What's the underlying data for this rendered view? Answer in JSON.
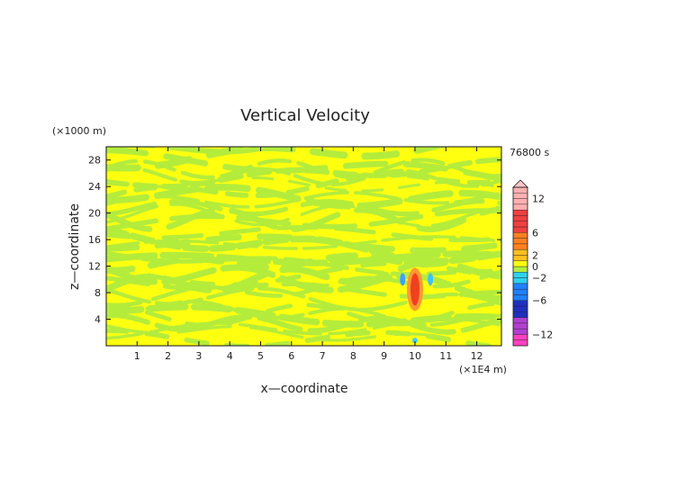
{
  "chart_data": {
    "type": "heatmap",
    "title": "Vertical Velocity",
    "time_label": "76800 s",
    "xlabel": "x—coordinate",
    "ylabel": "z—coordinate",
    "x_unit": "(×1E4 m)",
    "y_unit": "(×1000 m)",
    "xlim": [
      0,
      12.8
    ],
    "ylim": [
      0,
      30
    ],
    "x_ticks": [
      "1",
      "2",
      "3",
      "4",
      "5",
      "6",
      "7",
      "8",
      "9",
      "10",
      "11",
      "12"
    ],
    "y_ticks": [
      "4",
      "8",
      "12",
      "16",
      "20",
      "24",
      "28"
    ],
    "colorbar_labels": [
      "12",
      "6",
      "2",
      "0",
      "−2",
      "−6",
      "−12"
    ],
    "colorbar_levels": [
      -14,
      -13,
      -12,
      -11,
      -10,
      -9,
      -8,
      -7,
      -6,
      -5,
      -4,
      -3,
      -2,
      -1,
      0,
      1,
      2,
      3,
      4,
      5,
      6,
      7,
      8,
      9,
      10,
      11,
      12,
      13,
      14
    ],
    "background_band": "0 to 1 (yellow) alternating with -1 to 0 (light green) in wavy bands across the domain",
    "features": [
      {
        "name": "updraft core",
        "x_center": 10.0,
        "z_center": 8.5,
        "max_value": 8
      },
      {
        "name": "downdraft left flank",
        "x_center": 9.6,
        "z_center": 10.0,
        "min_value": -3
      },
      {
        "name": "downdraft right flank",
        "x_center": 10.5,
        "z_center": 10.0,
        "min_value": -3
      }
    ]
  }
}
